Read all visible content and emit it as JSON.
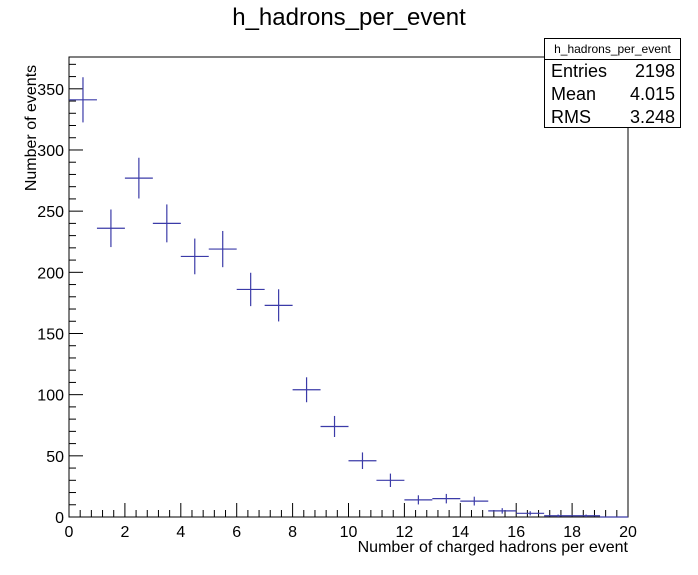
{
  "chart_data": {
    "type": "histogram",
    "title": "h_hadrons_per_event",
    "xlabel": "Number of charged hadrons per event",
    "ylabel": "Number of events",
    "xlim": [
      0,
      20
    ],
    "ylim": [
      0,
      376
    ],
    "x_ticks": [
      0,
      2,
      4,
      6,
      8,
      10,
      12,
      14,
      16,
      18,
      20
    ],
    "y_ticks": [
      0,
      50,
      100,
      150,
      200,
      250,
      300,
      350
    ],
    "grid": false,
    "marker_color": "#3b3ba8",
    "bins": [
      {
        "x": 0.5,
        "y": 341
      },
      {
        "x": 1.5,
        "y": 236
      },
      {
        "x": 2.5,
        "y": 277
      },
      {
        "x": 3.5,
        "y": 240
      },
      {
        "x": 4.5,
        "y": 213
      },
      {
        "x": 5.5,
        "y": 219
      },
      {
        "x": 6.5,
        "y": 186
      },
      {
        "x": 7.5,
        "y": 173
      },
      {
        "x": 8.5,
        "y": 104
      },
      {
        "x": 9.5,
        "y": 74
      },
      {
        "x": 10.5,
        "y": 46
      },
      {
        "x": 11.5,
        "y": 30
      },
      {
        "x": 12.5,
        "y": 14
      },
      {
        "x": 13.5,
        "y": 15
      },
      {
        "x": 14.5,
        "y": 13
      },
      {
        "x": 15.5,
        "y": 5
      },
      {
        "x": 16.5,
        "y": 3
      },
      {
        "x": 17.5,
        "y": 1
      },
      {
        "x": 18.5,
        "y": 1
      },
      {
        "x": 19.5,
        "y": 0
      }
    ]
  },
  "stats_box": {
    "title": "h_hadrons_per_event",
    "rows": [
      {
        "label": "Entries",
        "value": "2198"
      },
      {
        "label": "Mean",
        "value": "4.015"
      },
      {
        "label": "RMS",
        "value": "3.248"
      }
    ]
  }
}
